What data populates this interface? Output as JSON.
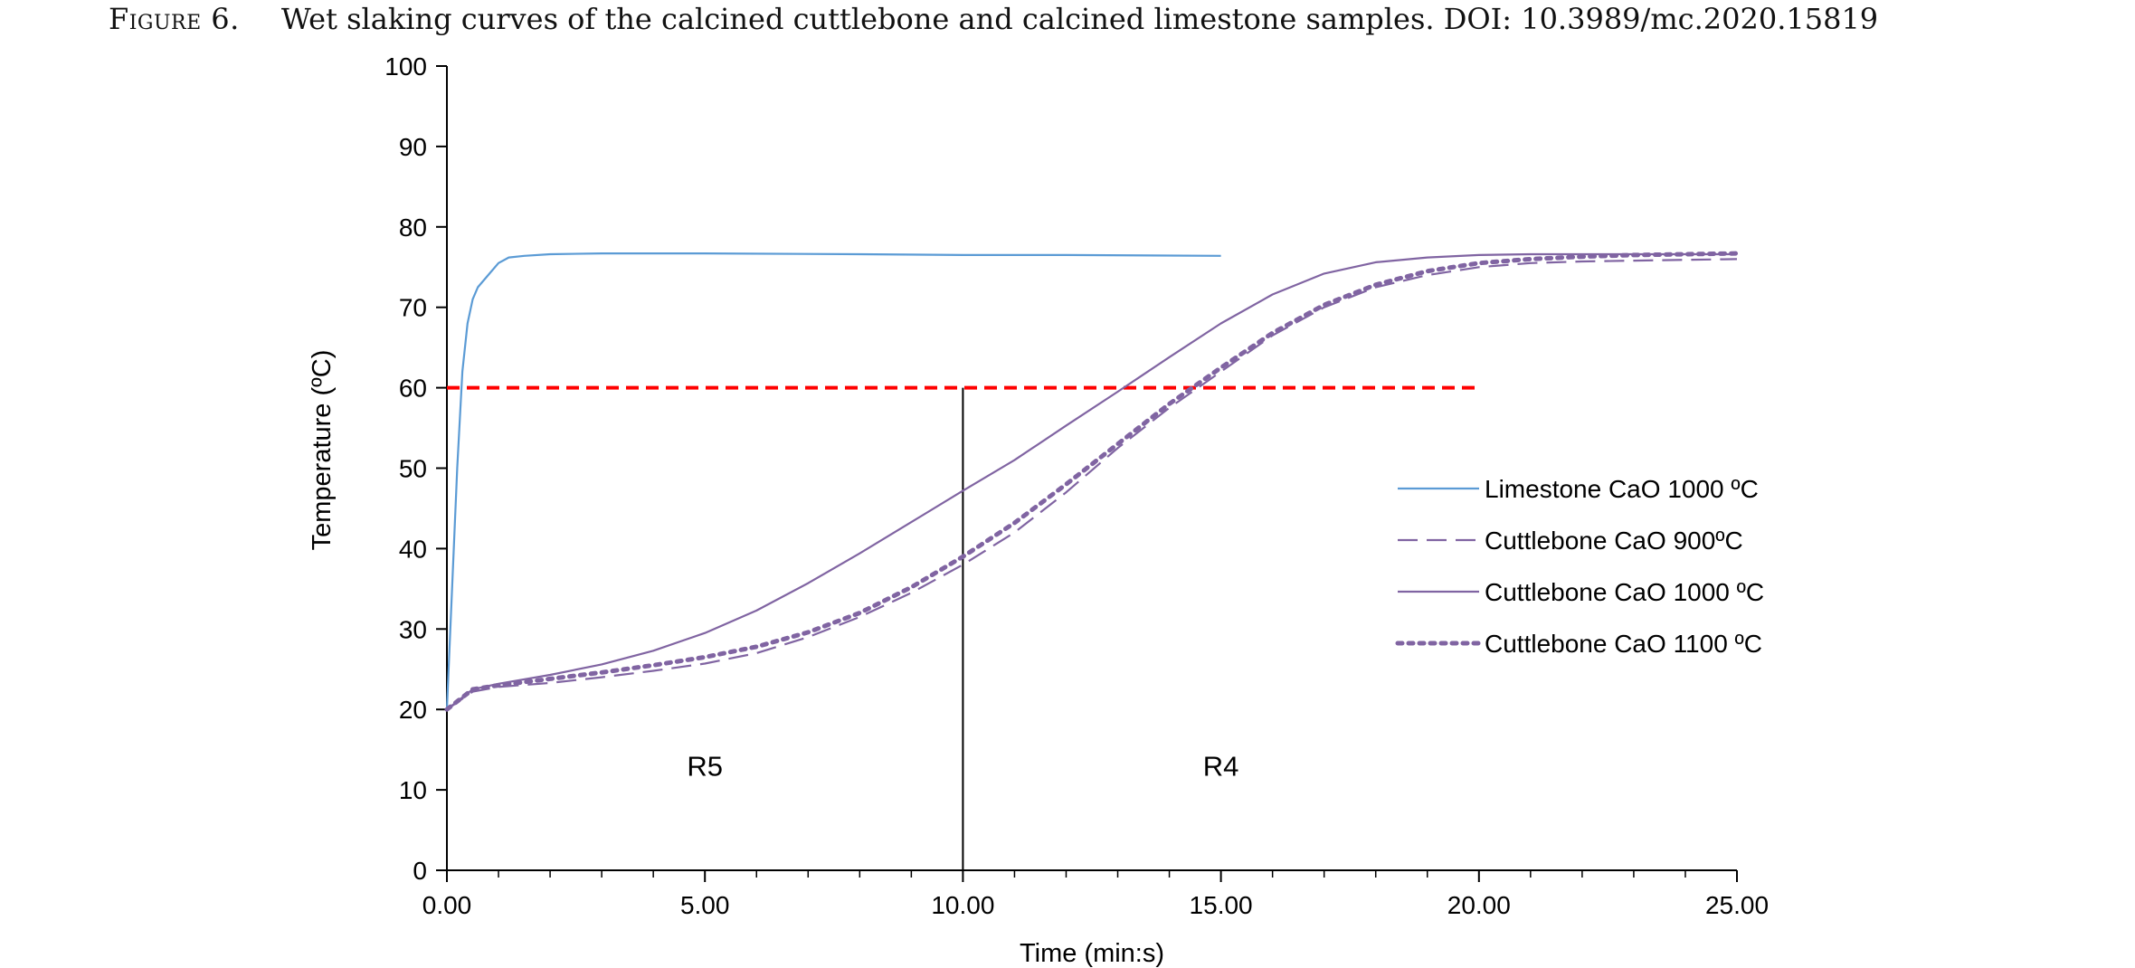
{
  "caption": {
    "figure_label": "Figure 6.",
    "text": "Wet slaking curves of the calcined cuttlebone and calcined limestone samples. DOI: 10.3989/mc.2020.15819"
  },
  "chart_data": {
    "type": "line",
    "xlabel": "Time (min:s)",
    "ylabel": "Temperature  (ºC)",
    "xlim": [
      0,
      25
    ],
    "ylim": [
      0,
      100
    ],
    "x_ticks": [
      "0.00",
      "5.00",
      "10.00",
      "15.00",
      "20.00",
      "25.00"
    ],
    "y_ticks": [
      "0",
      "10",
      "20",
      "30",
      "40",
      "50",
      "60",
      "70",
      "80",
      "90",
      "100"
    ],
    "grid": false,
    "legend_position": "right",
    "reference_lines": [
      {
        "type": "horizontal",
        "y": 60,
        "x_from": 0,
        "x_to": 20,
        "color": "#ff0000",
        "style": "dashed"
      },
      {
        "type": "vertical",
        "x": 10,
        "y_from": 0,
        "y_to": 60,
        "color": "#000000",
        "style": "solid"
      }
    ],
    "regions": [
      {
        "label": "R5",
        "x": 5,
        "y": 13
      },
      {
        "label": "R4",
        "x": 15,
        "y": 13
      }
    ],
    "series": [
      {
        "name": "Limestone CaO 1000 ºC",
        "color": "#5b9bd5",
        "style": "solid",
        "x": [
          0,
          0.1,
          0.2,
          0.3,
          0.4,
          0.5,
          0.6,
          0.8,
          1.0,
          1.2,
          1.5,
          2.0,
          3.0,
          5.0,
          8.0,
          10.0,
          12.0,
          15.0
        ],
        "y": [
          20,
          35,
          50,
          62,
          68,
          71,
          72.5,
          74,
          75.5,
          76.2,
          76.4,
          76.6,
          76.7,
          76.7,
          76.6,
          76.5,
          76.5,
          76.4
        ]
      },
      {
        "name": "Cuttlebone CaO 900ºC",
        "color": "#8064a2",
        "style": "dashed",
        "x": [
          0,
          0.5,
          1,
          2,
          3,
          4,
          5,
          6,
          7,
          8,
          9,
          10,
          11,
          12,
          13,
          14,
          15,
          16,
          17,
          18,
          19,
          20,
          21,
          22,
          23,
          24,
          25
        ],
        "y": [
          20,
          22.2,
          22.8,
          23.3,
          24.0,
          24.8,
          25.7,
          27.0,
          29.0,
          31.5,
          34.5,
          38.0,
          42.0,
          47.0,
          52.5,
          57.5,
          62.0,
          66.5,
          70.0,
          72.5,
          74.0,
          75.0,
          75.5,
          75.7,
          75.8,
          75.9,
          76.0
        ]
      },
      {
        "name": "Cuttlebone CaO 1000 ºC",
        "color": "#8064a2",
        "style": "solid",
        "x": [
          0,
          0.5,
          1,
          2,
          3,
          4,
          5,
          6,
          7,
          8,
          9,
          10,
          11,
          12,
          13,
          14,
          15,
          16,
          17,
          18,
          19,
          20,
          21,
          22,
          23,
          24,
          25
        ],
        "y": [
          20,
          22.5,
          23.2,
          24.3,
          25.6,
          27.3,
          29.5,
          32.3,
          35.7,
          39.4,
          43.3,
          47.2,
          51.0,
          55.3,
          59.5,
          63.8,
          68.0,
          71.6,
          74.2,
          75.6,
          76.2,
          76.5,
          76.6,
          76.6,
          76.6,
          76.6,
          76.6
        ]
      },
      {
        "name": "Cuttlebone CaO 1100 ºC",
        "color": "#8064a2",
        "style": "dotted",
        "x": [
          0,
          0.5,
          1,
          2,
          3,
          4,
          5,
          6,
          7,
          8,
          9,
          10,
          11,
          12,
          13,
          14,
          15,
          16,
          17,
          18,
          19,
          20,
          21,
          22,
          23,
          24,
          25
        ],
        "y": [
          20,
          22.5,
          23.0,
          23.8,
          24.6,
          25.5,
          26.5,
          27.8,
          29.6,
          32.0,
          35.2,
          39.0,
          43.2,
          48.0,
          53.0,
          58.0,
          62.5,
          66.8,
          70.3,
          72.8,
          74.5,
          75.5,
          76.0,
          76.3,
          76.5,
          76.6,
          76.7
        ]
      }
    ]
  }
}
